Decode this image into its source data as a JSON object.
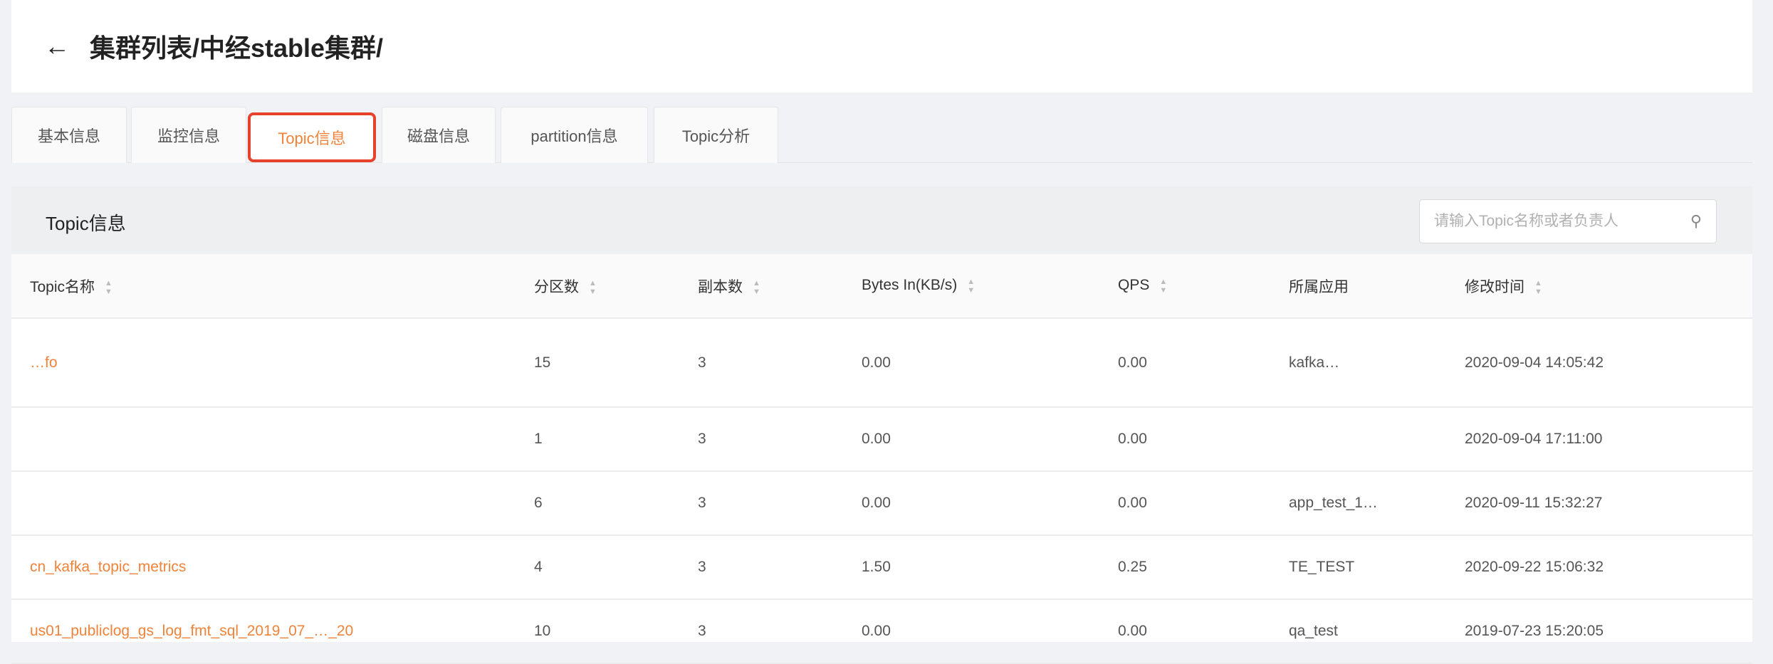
{
  "header": {
    "back_icon": "arrow-left-icon",
    "title": "集群列表/中经stable集群/"
  },
  "tabs": [
    {
      "label": "基本信息"
    },
    {
      "label": "监控信息"
    },
    {
      "label": "Topic信息",
      "active": true
    },
    {
      "label": "磁盘信息"
    },
    {
      "label": "partition信息"
    },
    {
      "label": "Topic分析"
    }
  ],
  "panel": {
    "title": "Topic信息",
    "search_placeholder": "请输入Topic名称或者负责人",
    "search_value": ""
  },
  "accent": "#f0833a",
  "table": {
    "columns": [
      "Topic名称",
      "分区数",
      "副本数",
      "Bytes In(KB/s)",
      "QPS",
      "所属应用",
      "修改时间"
    ],
    "rows": [
      {
        "name": "…fo",
        "partitions": "15",
        "replicas": "3",
        "bytes_in": "0.00",
        "qps": "0.00",
        "app": "kafka…",
        "time": "2020-09-04 14:05:42"
      },
      {
        "name": "",
        "partitions": "1",
        "replicas": "3",
        "bytes_in": "0.00",
        "qps": "0.00",
        "app": "",
        "time": "2020-09-04 17:11:00"
      },
      {
        "name": "",
        "partitions": "6",
        "replicas": "3",
        "bytes_in": "0.00",
        "qps": "0.00",
        "app": "app_test_1…",
        "time": "2020-09-11 15:32:27"
      },
      {
        "name": "cn_kafka_topic_metrics",
        "partitions": "4",
        "replicas": "3",
        "bytes_in": "1.50",
        "qps": "0.25",
        "app": "TE_TEST",
        "time": "2020-09-22 15:06:32"
      },
      {
        "name": "us01_publiclog_gs_log_fmt_sql_2019_07_…_20",
        "partitions": "10",
        "replicas": "3",
        "bytes_in": "0.00",
        "qps": "0.00",
        "app": "qa_test",
        "time": "2019-07-23 15:20:05"
      }
    ]
  }
}
